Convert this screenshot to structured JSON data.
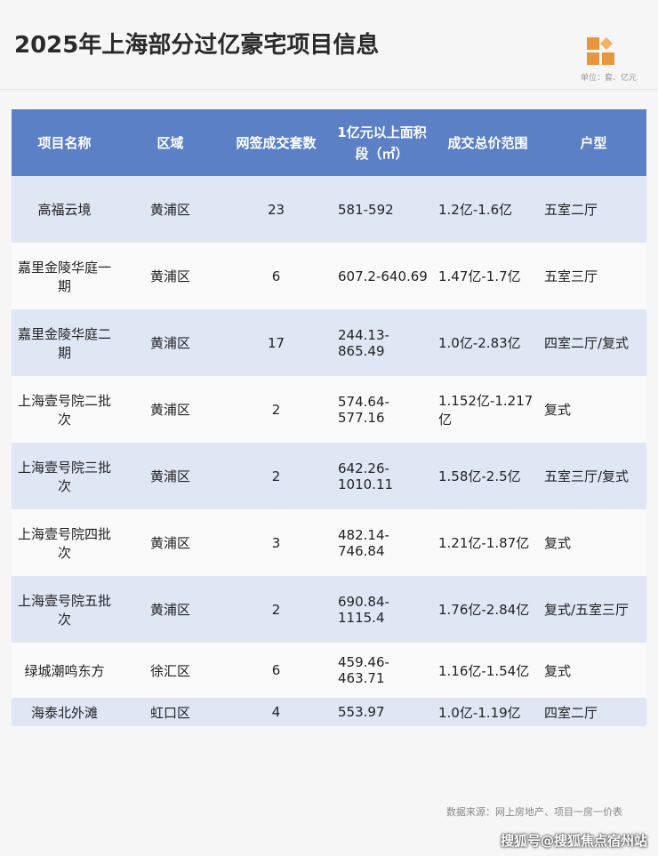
{
  "header": {
    "title": "2025年上海部分过亿豪宅项目信息",
    "unit": "单位：套、亿元"
  },
  "table": {
    "columns": [
      "项目名称",
      "区域",
      "网签成交套数",
      "1亿元以上面积段（㎡）",
      "成交总价范围",
      "户型"
    ],
    "rows": [
      [
        "高福云境",
        "黄浦区",
        "23",
        "581-592",
        "1.2亿-1.6亿",
        "五室二厅"
      ],
      [
        "嘉里金陵华庭一期",
        "黄浦区",
        "6",
        "607.2-640.69",
        "1.47亿-1.7亿",
        "五室三厅"
      ],
      [
        "嘉里金陵华庭二期",
        "黄浦区",
        "17",
        "244.13-865.49",
        "1.0亿-2.83亿",
        "四室二厅/复式"
      ],
      [
        "上海壹号院二批次",
        "黄浦区",
        "2",
        "574.64-577.16",
        "1.152亿-1.217亿",
        "复式"
      ],
      [
        "上海壹号院三批次",
        "黄浦区",
        "2",
        "642.26-1010.11",
        "1.58亿-2.5亿",
        "五室三厅/复式"
      ],
      [
        "上海壹号院四批次",
        "黄浦区",
        "3",
        "482.14-746.84",
        "1.21亿-1.87亿",
        "复式"
      ],
      [
        "上海壹号院五批次",
        "黄浦区",
        "2",
        "690.84-1115.4",
        "1.76亿-2.84亿",
        "复式/五室三厅"
      ],
      [
        "绿城潮鸣东方",
        "徐汇区",
        "6",
        "459.46-463.71",
        "1.16亿-1.54亿",
        "复式"
      ],
      [
        "海泰北外滩",
        "虹口区",
        "4",
        "553.97",
        "1.0亿-1.19亿",
        "四室二厅"
      ]
    ]
  },
  "footer": {
    "source": "数据来源：网上房地产、项目一房一价表",
    "watermark": "搜狐号@搜狐焦点宿州站"
  }
}
